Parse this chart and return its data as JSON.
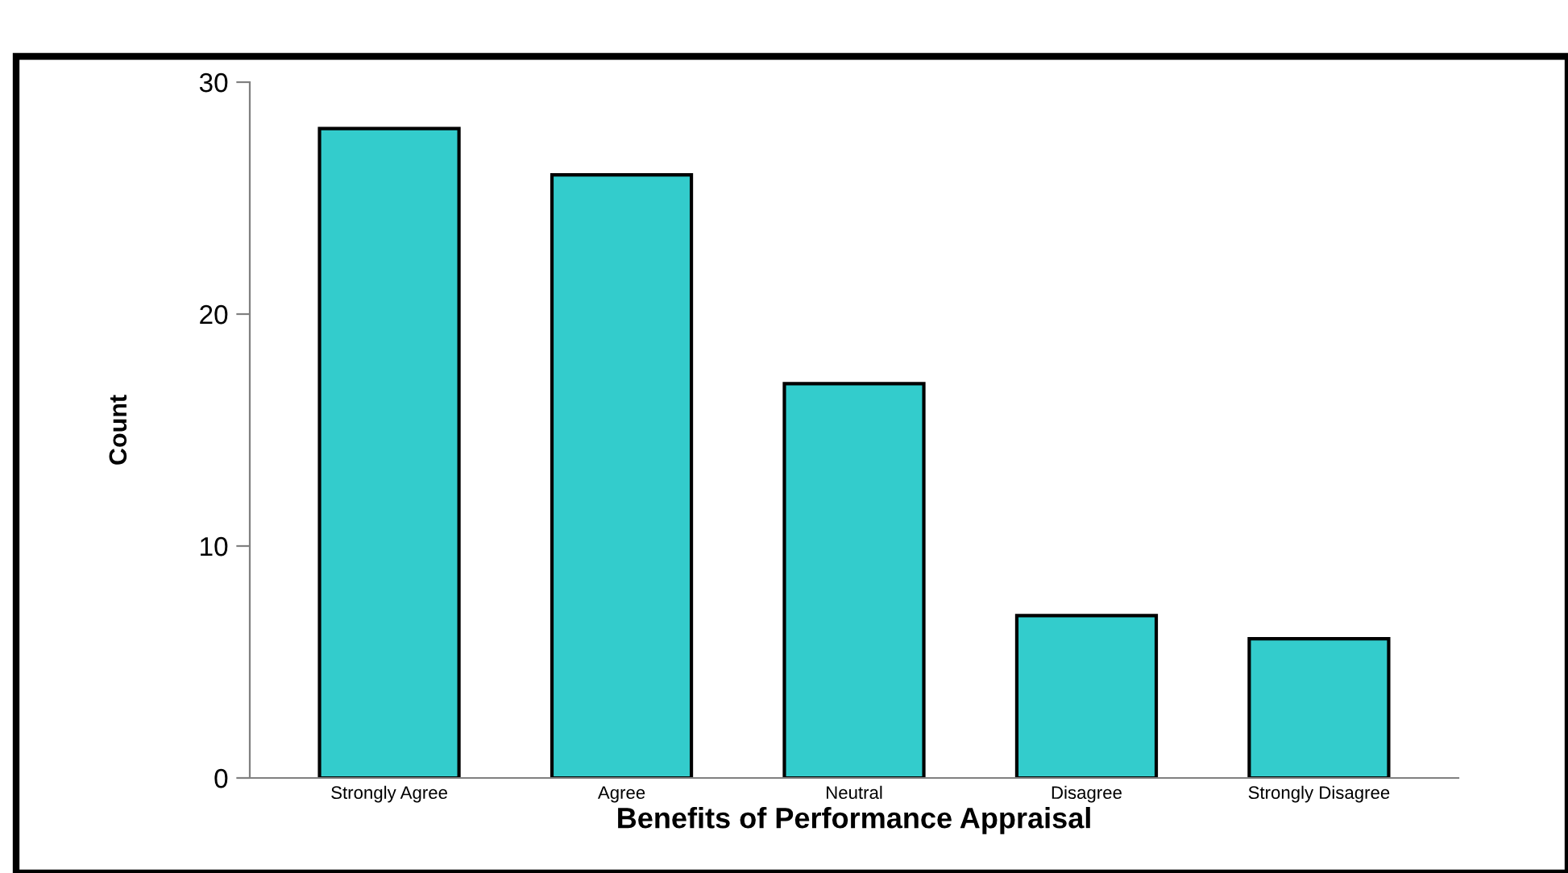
{
  "chart_data": {
    "type": "bar",
    "xlabel": "Benefits of Performance Appraisal",
    "ylabel": "Count",
    "categories": [
      "Strongly Agree",
      "Agree",
      "Neutral",
      "Disagree",
      "Strongly Disagree"
    ],
    "values": [
      28,
      26,
      17,
      7,
      6
    ],
    "color": "#33cccc",
    "ylim": [
      0,
      30
    ],
    "yticks": [
      0,
      10,
      20,
      30
    ],
    "grid": false,
    "legend": false
  }
}
